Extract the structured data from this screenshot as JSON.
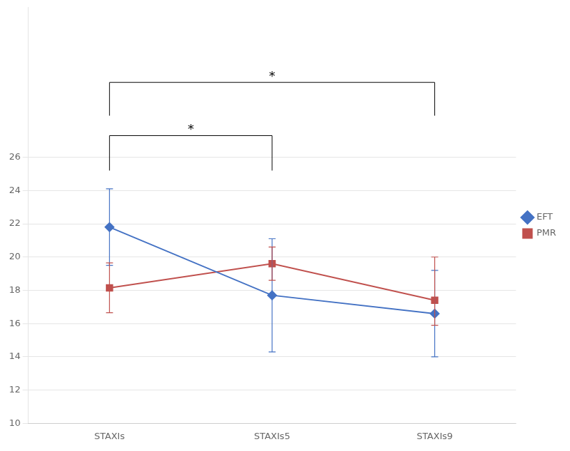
{
  "chart_data": {
    "type": "line",
    "categories": [
      "STAXIs",
      "STAXIs5",
      "STAXIs9"
    ],
    "series": [
      {
        "name": "EFT",
        "color": "#4472C4",
        "marker": "diamond",
        "values": [
          21.8,
          17.7,
          16.6
        ],
        "error_upper": [
          2.3,
          3.4,
          2.6
        ],
        "error_lower": [
          2.3,
          3.4,
          2.6
        ]
      },
      {
        "name": "PMR",
        "color": "#C0504D",
        "marker": "square",
        "values": [
          18.15,
          19.6,
          17.4
        ],
        "error_upper": [
          1.5,
          1.0,
          2.6
        ],
        "error_lower": [
          1.5,
          1.0,
          1.5
        ]
      }
    ],
    "ylim": [
      10,
      35
    ],
    "yticks": [
      10,
      12,
      14,
      16,
      18,
      20,
      22,
      24,
      26
    ],
    "grid": true,
    "legend": "right",
    "brackets": [
      {
        "x0": 0,
        "x1": 1,
        "bottom": 25.2,
        "top": 27.3
      },
      {
        "x0": 0,
        "x1": 2,
        "bottom": 28.5,
        "top": 30.5
      }
    ],
    "annotations": [
      {
        "text": "*",
        "x": 0.5,
        "y": 27.5
      },
      {
        "text": "*",
        "x": 1.0,
        "y": 30.7
      }
    ]
  }
}
